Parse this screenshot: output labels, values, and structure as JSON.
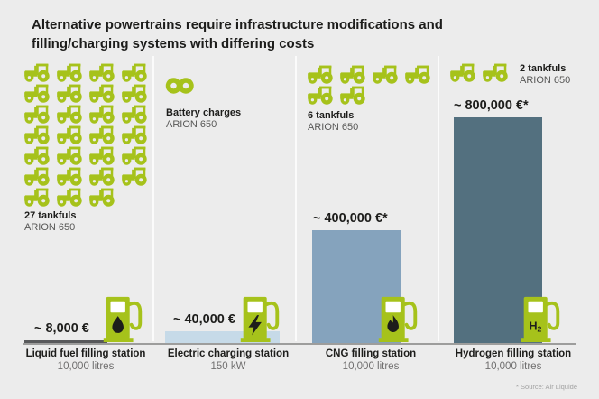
{
  "title": "Alternative powertrains require infrastructure modifications and filling/charging systems with differing costs",
  "footnote": "* Source: Air Liquide",
  "colors": {
    "accent_green": "#a6c21b",
    "background": "#ececec",
    "text_dark": "#1d1d1b",
    "text_gray": "#575756",
    "baseline_gray": "#9d9d9c"
  },
  "chart_data": {
    "type": "bar",
    "title": "Alternative powertrains require infrastructure modifications and filling/charging systems with differing costs",
    "categories": [
      "Liquid fuel filling station",
      "Electric charging station",
      "CNG filling station",
      "Hydrogen filling station"
    ],
    "category_specs": [
      "10,000 litres",
      "150 kW",
      "10,000 litres",
      "10,000 litres"
    ],
    "values": [
      8000,
      40000,
      400000,
      800000
    ],
    "value_labels": [
      "~ 8,000 €",
      "~ 40,000 €",
      "~ 400,000 €*",
      "~ 800,000 €*"
    ],
    "unit": "€",
    "ylim": [
      0,
      800000
    ],
    "grid": false,
    "legend": false,
    "bar_colors": [
      "#58595b",
      "#c6dae8",
      "#85a3bd",
      "#53707f"
    ],
    "pictogram_counts": [
      27,
      null,
      6,
      2
    ],
    "pictogram_labels": [
      [
        "27 tankfuls",
        "ARION 650"
      ],
      [
        "Battery charges",
        "ARION 650"
      ],
      [
        "6 tankfuls",
        "ARION 650"
      ],
      [
        "2 tankfuls",
        "ARION 650"
      ]
    ],
    "pump_symbols": [
      "fuel-drop",
      "lightning-bolt",
      "flame",
      "H2"
    ]
  }
}
